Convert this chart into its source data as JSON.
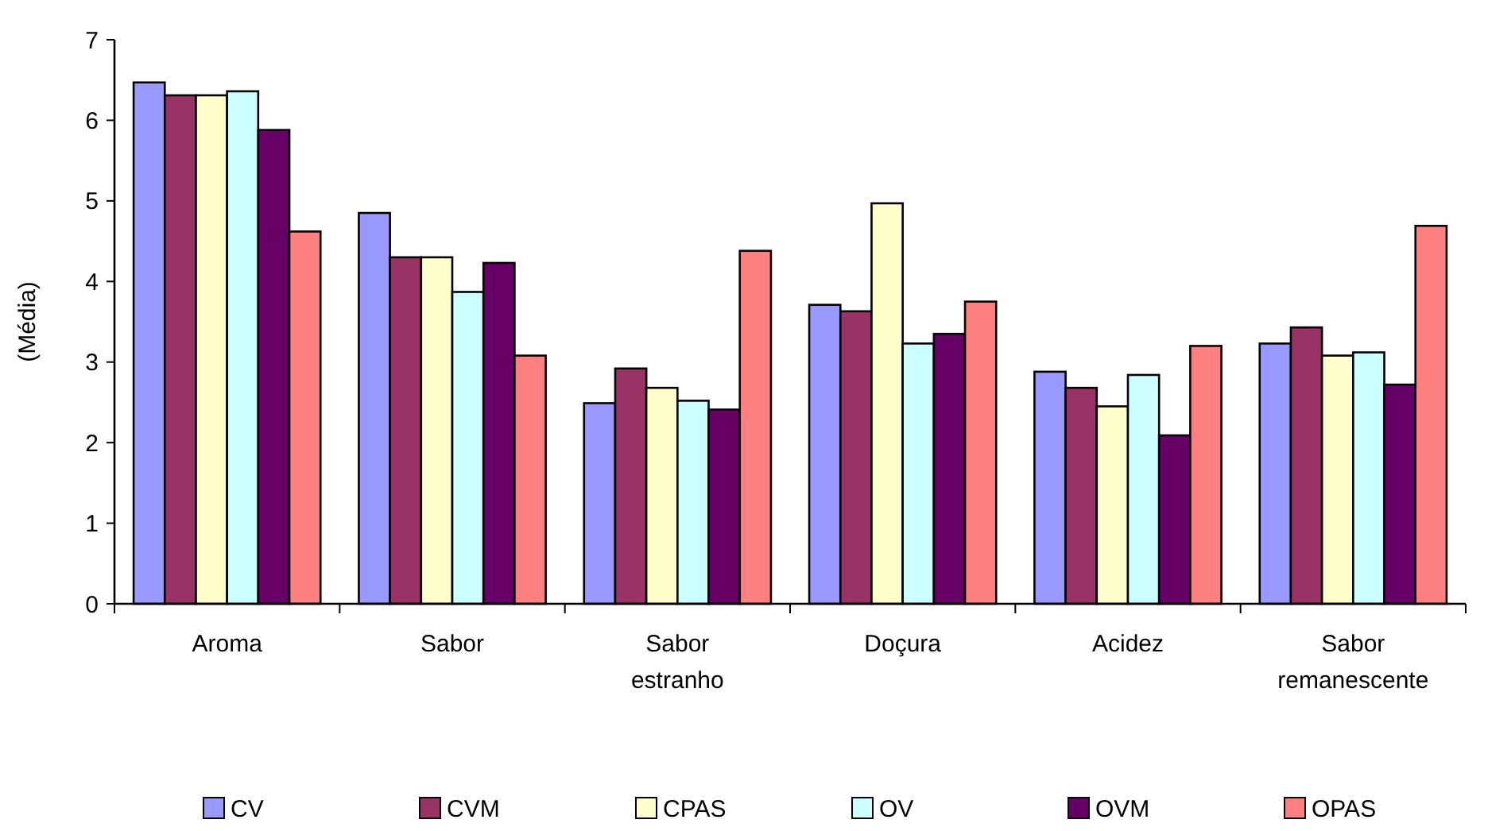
{
  "chart_data": {
    "type": "bar",
    "ylabel": "(Média)",
    "categories": [
      "Aroma",
      "Sabor",
      "Sabor estranho",
      "Doçura",
      "Acidez",
      "Sabor remanescente"
    ],
    "series": [
      {
        "name": "CV",
        "color": "#9999ff",
        "values": [
          6.47,
          4.85,
          2.49,
          3.71,
          2.88,
          3.23
        ]
      },
      {
        "name": "CVM",
        "color": "#993366",
        "values": [
          6.31,
          4.3,
          2.92,
          3.63,
          2.68,
          3.43
        ]
      },
      {
        "name": "CPAS",
        "color": "#ffffcc",
        "values": [
          6.31,
          4.3,
          2.68,
          4.97,
          2.45,
          3.08
        ]
      },
      {
        "name": "OV",
        "color": "#ccffff",
        "values": [
          6.36,
          3.87,
          2.52,
          3.23,
          2.84,
          3.12
        ]
      },
      {
        "name": "OVM",
        "color": "#660066",
        "values": [
          5.88,
          4.23,
          2.41,
          3.35,
          2.09,
          2.72
        ]
      },
      {
        "name": "OPAS",
        "color": "#ff8080",
        "values": [
          4.62,
          3.08,
          4.38,
          3.75,
          3.2,
          4.69
        ]
      }
    ],
    "ylim": [
      0,
      7
    ],
    "yticks": [
      0,
      1,
      2,
      3,
      4,
      5,
      6,
      7
    ],
    "legend": "bottom",
    "grid": false
  }
}
